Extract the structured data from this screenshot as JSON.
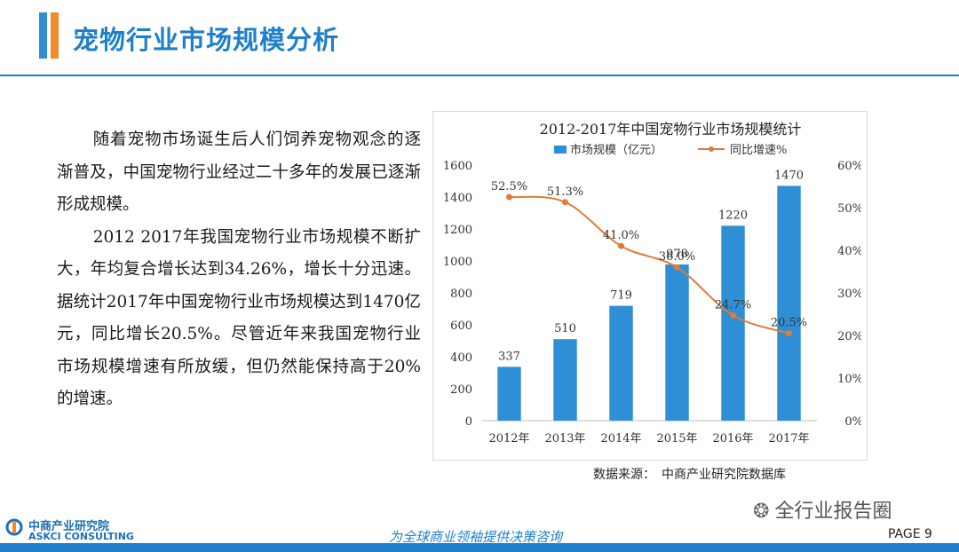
{
  "header": {
    "title": "宠物行业市场规模分析"
  },
  "body": {
    "paragraphs": [
      "随着宠物市场诞生后人们饲养宠物观念的逐渐普及，中国宠物行业经过二十多年的发展已逐渐形成规模。",
      "2012 2017年我国宠物行业市场规模不断扩大，年均复合增长达到34.26%，增长十分迅速。据统计2017年中国宠物行业市场规模达到1470亿元，同比增长20.5%。尽管近年来我国宠物行业市场规模增速有所放缓，但仍然能保持高于20%的增速。"
    ]
  },
  "chart_data": {
    "type": "bar",
    "title": "2012-2017年中国宠物行业市场规模统计",
    "categories": [
      "2012年",
      "2013年",
      "2014年",
      "2015年",
      "2016年",
      "2017年"
    ],
    "series": [
      {
        "name": "市场规模（亿元）",
        "type": "bar",
        "axis": "left",
        "values": [
          337,
          510,
          719,
          978,
          1220,
          1470
        ],
        "labels": [
          "337",
          "510",
          "719",
          "978",
          "1220",
          "1470"
        ],
        "color": "#2E8FD6"
      },
      {
        "name": "同比增速%",
        "type": "line",
        "axis": "right",
        "values": [
          52.5,
          51.3,
          41.0,
          36.0,
          24.7,
          20.5
        ],
        "labels": [
          "52.5%",
          "51.3%",
          "41.0%",
          "36.0%",
          "24.7%",
          "20.5%"
        ],
        "color": "#E07B39"
      }
    ],
    "ylim_left": [
      0,
      1600
    ],
    "yticks_left": [
      "0",
      "200",
      "400",
      "600",
      "800",
      "1000",
      "1200",
      "1400",
      "1600"
    ],
    "ylim_right": [
      0,
      60
    ],
    "yticks_right": [
      "0%",
      "10%",
      "20%",
      "30%",
      "40%",
      "50%",
      "60%"
    ],
    "legend_position": "top"
  },
  "source": "数据来源：　中商产业研究院数据库",
  "watermark": "全行业报告圈",
  "footer": {
    "logo_cn": "中商产业研究院",
    "logo_en": "ASKCI CONSULTING",
    "slogan": "为全球商业领袖提供决策咨询",
    "page": "PAGE 9"
  }
}
